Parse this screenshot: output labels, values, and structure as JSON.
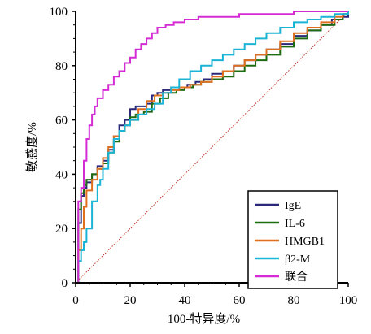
{
  "chart_data": {
    "type": "line",
    "title": "",
    "xlabel": "100-特异度/%",
    "ylabel": "敏感度/%",
    "xlim": [
      0,
      100
    ],
    "ylim": [
      0,
      100
    ],
    "xticks": [
      0,
      20,
      40,
      60,
      80,
      100
    ],
    "yticks": [
      0,
      20,
      40,
      60,
      80,
      100
    ],
    "x_tick_labels": [
      "0",
      "20",
      "40",
      "60",
      "80",
      "100"
    ],
    "y_tick_labels": [
      "0",
      "20",
      "40",
      "60",
      "80",
      "100"
    ],
    "grid": false,
    "legend_position": "bottom-right",
    "reference_line": {
      "x": [
        0,
        100
      ],
      "y": [
        0,
        100
      ],
      "color": "#c0392b",
      "style": "dotted"
    },
    "series": [
      {
        "name": "IgE",
        "color": "#2b2a7a",
        "x": [
          0,
          1,
          2,
          3,
          4,
          6,
          8,
          10,
          12,
          14,
          16,
          18,
          20,
          22,
          24,
          26,
          28,
          30,
          32,
          35,
          38,
          41,
          44,
          47,
          50,
          54,
          58,
          62,
          66,
          70,
          75,
          80,
          85,
          90,
          94,
          98,
          100
        ],
        "y": [
          0,
          22,
          32,
          35,
          37,
          40,
          43,
          45,
          49,
          54,
          58,
          60,
          64,
          65,
          65,
          66,
          69,
          70,
          71,
          72,
          72,
          73,
          74,
          75,
          77,
          78,
          80,
          82,
          84,
          86,
          88,
          91,
          93,
          95,
          97,
          98,
          100
        ]
      },
      {
        "name": "IL-6",
        "color": "#1e6b12",
        "x": [
          0,
          1,
          2,
          3,
          4,
          6,
          8,
          10,
          12,
          14,
          16,
          18,
          20,
          22,
          25,
          28,
          31,
          34,
          37,
          40,
          43,
          46,
          50,
          54,
          58,
          62,
          66,
          70,
          75,
          80,
          85,
          90,
          95,
          98,
          100
        ],
        "y": [
          0,
          27,
          33,
          36,
          38,
          40,
          42,
          44,
          48,
          52,
          56,
          58,
          61,
          62,
          63,
          66,
          68,
          70,
          71,
          72,
          73,
          74,
          75,
          76,
          78,
          80,
          82,
          84,
          87,
          90,
          93,
          95,
          97,
          99,
          100
        ]
      },
      {
        "name": "HMGB1",
        "color": "#e07020",
        "x": [
          0,
          1,
          2,
          3,
          4,
          6,
          8,
          10,
          12,
          14,
          16,
          18,
          20,
          23,
          26,
          29,
          32,
          35,
          38,
          42,
          46,
          50,
          54,
          58,
          62,
          66,
          70,
          75,
          80,
          85,
          90,
          95,
          98,
          100
        ],
        "y": [
          0,
          12,
          20,
          28,
          34,
          38,
          42,
          46,
          50,
          54,
          56,
          58,
          60,
          64,
          67,
          69,
          70,
          71,
          72,
          73,
          74,
          76,
          78,
          80,
          82,
          84,
          86,
          89,
          92,
          94,
          96,
          98,
          99,
          100
        ]
      },
      {
        "name": "β2-M",
        "color": "#1bb4d6",
        "x": [
          0,
          1,
          2,
          3,
          4,
          6,
          8,
          9,
          10,
          12,
          14,
          16,
          18,
          20,
          23,
          26,
          29,
          32,
          35,
          38,
          42,
          46,
          50,
          54,
          58,
          62,
          66,
          70,
          75,
          80,
          85,
          90,
          95,
          100
        ],
        "y": [
          0,
          8,
          12,
          15,
          20,
          30,
          36,
          38,
          42,
          48,
          53,
          56,
          58,
          60,
          62,
          64,
          66,
          70,
          72,
          75,
          78,
          80,
          82,
          84,
          86,
          88,
          90,
          92,
          94,
          96,
          97,
          98,
          99,
          100
        ]
      },
      {
        "name": "联合",
        "color": "#d42bd4",
        "x": [
          0,
          1,
          2,
          3,
          4,
          5,
          6,
          7,
          8,
          10,
          12,
          14,
          16,
          18,
          20,
          22,
          24,
          26,
          28,
          30,
          33,
          36,
          40,
          45,
          50,
          55,
          60,
          65,
          70,
          75,
          80,
          85,
          90,
          95,
          100
        ],
        "y": [
          0,
          30,
          35,
          45,
          53,
          58,
          62,
          65,
          68,
          71,
          73,
          76,
          78,
          81,
          83,
          86,
          88,
          90,
          92,
          94,
          95,
          96,
          97,
          98,
          98,
          98,
          99,
          99,
          99,
          99,
          100,
          100,
          100,
          100,
          100
        ]
      }
    ]
  }
}
